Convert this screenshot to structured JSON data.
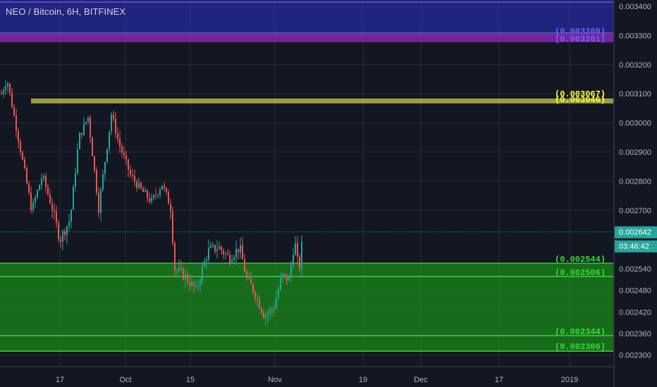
{
  "header": {
    "title": "NEO / Bitcoin, 6H, BITFINEX"
  },
  "chart_data": {
    "type": "candlestick",
    "title": "NEO / Bitcoin, 6H, BITFINEX",
    "price_ticks": [
      "0.003400",
      "0.003300",
      "0.003200",
      "0.003100",
      "0.003000",
      "0.002900",
      "0.002800",
      "0.002700",
      "0.002540",
      "0.002480",
      "0.002420",
      "0.002360",
      "0.002300"
    ],
    "time_ticks": [
      "17",
      "Oct",
      "15",
      "Nov",
      "19",
      "Dec",
      "17",
      "2019"
    ],
    "last_price": "0.002642",
    "countdown": "03:46:42",
    "zones": [
      {
        "name": "blue-zone",
        "labels": [],
        "color": "#2a2fc9"
      },
      {
        "name": "purple-zone",
        "labels": [
          "0.003280",
          "0.003261"
        ],
        "color": "#9b2bd0",
        "label_color": "#7d5cff"
      },
      {
        "name": "yellow-zone",
        "labels": [
          "0.003067",
          "0.003046"
        ],
        "color": "#c8c84a",
        "label_color": "#ffff3c"
      },
      {
        "name": "green-zone",
        "labels": [
          "0.002544",
          "0.002506",
          "0.002344",
          "0.002306"
        ],
        "color": "#1a8a1a",
        "label_color": "#30e030"
      }
    ],
    "colors": {
      "up": "#26a69a",
      "down": "#ef5350",
      "background": "#131722",
      "grid": "#2a2e39"
    },
    "candles_approx": [
      [
        0.00312,
        0.0032
      ],
      [
        0.00308,
        0.0029
      ],
      [
        0.00305,
        0.00298
      ],
      [
        0.003,
        0.00292
      ],
      [
        0.00295,
        0.00282
      ],
      [
        0.00285,
        0.00272
      ],
      [
        0.0028,
        0.00268
      ],
      [
        0.00278,
        0.0027
      ],
      [
        0.00276,
        0.00265
      ],
      [
        0.00275,
        0.00263
      ],
      [
        0.0029,
        0.003
      ],
      [
        0.00295,
        0.00282
      ],
      [
        0.00303,
        0.00292
      ],
      [
        0.00298,
        0.0029
      ],
      [
        0.0029,
        0.00282
      ],
      [
        0.00283,
        0.00278
      ],
      [
        0.0028,
        0.00276
      ],
      [
        0.00279,
        0.00275
      ],
      [
        0.00278,
        0.00276
      ],
      [
        0.0028,
        0.00273
      ],
      [
        0.00275,
        0.0026
      ],
      [
        0.00262,
        0.0025
      ],
      [
        0.00255,
        0.00248
      ],
      [
        0.00258,
        0.00252
      ],
      [
        0.00262,
        0.00256
      ],
      [
        0.0026,
        0.00256
      ],
      [
        0.0026,
        0.00255
      ],
      [
        0.00256,
        0.0025
      ],
      [
        0.0025,
        0.00245
      ],
      [
        0.00246,
        0.0024
      ],
      [
        0.00241,
        0.0024
      ],
      [
        0.00244,
        0.00242
      ],
      [
        0.0025,
        0.00248
      ],
      [
        0.00255,
        0.0025
      ],
      [
        0.00262,
        0.00264
      ]
    ]
  }
}
